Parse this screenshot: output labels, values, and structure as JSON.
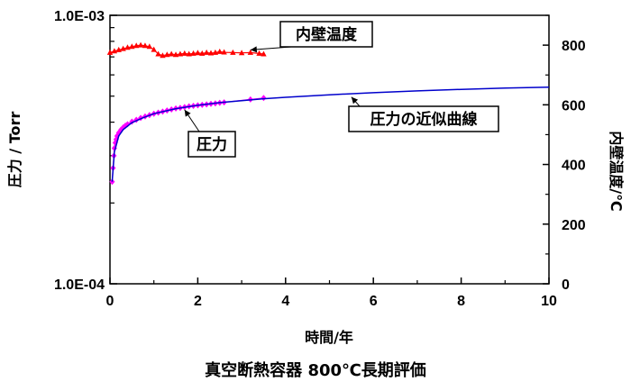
{
  "chart_data": {
    "type": "scatter",
    "title": "",
    "caption": "真空断熱容器 800℃長期評価",
    "xlabel": "時間/年",
    "ylabel": "圧力 / Torr",
    "y2label": "内壁温度/℃",
    "xlim": [
      0,
      10
    ],
    "ylim": [
      0.0001,
      0.001
    ],
    "yscale": "log",
    "y2lim": [
      0,
      900
    ],
    "xticks": [
      "0",
      "2",
      "4",
      "6",
      "8",
      "10"
    ],
    "yticks": [
      "1.0E-04",
      "1.0E-03"
    ],
    "y2ticks": [
      "0",
      "200",
      "400",
      "600",
      "800"
    ],
    "grid": false,
    "legend": "none",
    "series": [
      {
        "key": "temperature",
        "axis": "y2",
        "color": "#ff0000",
        "marker": "triangle",
        "x": [
          0.0,
          0.1,
          0.2,
          0.3,
          0.4,
          0.5,
          0.6,
          0.7,
          0.8,
          0.9,
          1.0,
          1.1,
          1.2,
          1.3,
          1.4,
          1.5,
          1.6,
          1.7,
          1.8,
          1.9,
          2.0,
          2.1,
          2.2,
          2.3,
          2.4,
          2.5,
          2.6,
          2.8,
          3.0,
          3.2,
          3.4,
          3.5
        ],
        "y": [
          775,
          780,
          784,
          788,
          792,
          795,
          798,
          800,
          798,
          795,
          785,
          770,
          765,
          768,
          770,
          768,
          770,
          772,
          770,
          772,
          774,
          772,
          775,
          773,
          775,
          778,
          776,
          775,
          774,
          775,
          772,
          770
        ]
      },
      {
        "key": "pressure",
        "axis": "y",
        "color": "#ff00ff",
        "marker": "diamond",
        "x": [
          0.05,
          0.07,
          0.09,
          0.1,
          0.12,
          0.14,
          0.16,
          0.2,
          0.25,
          0.3,
          0.35,
          0.4,
          0.5,
          0.6,
          0.7,
          0.8,
          0.9,
          1.0,
          1.1,
          1.2,
          1.3,
          1.4,
          1.5,
          1.6,
          1.7,
          1.8,
          1.9,
          2.0,
          2.1,
          2.2,
          2.3,
          2.4,
          2.5,
          2.6,
          3.2,
          3.5
        ],
        "y": [
          0.00024,
          0.00027,
          0.0003,
          0.00032,
          0.000335,
          0.000345,
          0.000355,
          0.000365,
          0.000375,
          0.000382,
          0.000388,
          0.000393,
          0.000402,
          0.000408,
          0.000415,
          0.00042,
          0.000425,
          0.00043,
          0.000434,
          0.000438,
          0.000442,
          0.000446,
          0.00045,
          0.000452,
          0.000455,
          0.000458,
          0.00046,
          0.000462,
          0.000464,
          0.000466,
          0.000468,
          0.00047,
          0.000472,
          0.000474,
          0.000486,
          0.000492
        ]
      },
      {
        "key": "fit",
        "axis": "y",
        "type": "line",
        "color": "#0000cc",
        "x": [
          0.05,
          0.1,
          0.2,
          0.3,
          0.5,
          0.75,
          1.0,
          1.5,
          2.0,
          2.5,
          3.0,
          3.5,
          4.0,
          5.0,
          6.0,
          7.0,
          8.0,
          9.0,
          10.0
        ],
        "y": [
          0.00024,
          0.00031,
          0.000355,
          0.000375,
          0.000398,
          0.000415,
          0.00043,
          0.000449,
          0.000462,
          0.000473,
          0.000481,
          0.000489,
          0.000495,
          0.000506,
          0.000515,
          0.000523,
          0.00053,
          0.000536,
          0.00054
        ]
      }
    ],
    "annotations": [
      {
        "key": "temp_callout",
        "text": "内壁温度",
        "x": 3.2,
        "y2": 775
      },
      {
        "key": "pressure_callout",
        "text": "圧力",
        "x": 1.7,
        "y": 0.000455
      },
      {
        "key": "fit_callout",
        "text": "圧力の近似曲線",
        "x": 5.5,
        "y": 0.000508
      }
    ]
  }
}
